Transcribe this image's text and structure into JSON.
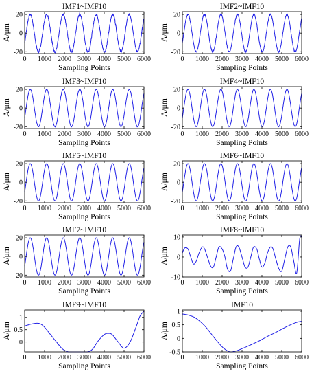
{
  "figure": {
    "line_color": "#1f1fe6",
    "axis_color": "#000000"
  },
  "chart_data": [
    {
      "type": "line",
      "title": "IMF1~IMF10",
      "xlabel": "Sampling Points",
      "ylabel": "A/μm",
      "xlim": [
        0,
        6000
      ],
      "ylim": [
        -22,
        23
      ],
      "xticks": [
        "0",
        "1000",
        "2000",
        "3000",
        "4000",
        "5000",
        "6000"
      ],
      "yticks": [
        -20,
        0,
        20
      ],
      "series": [
        {
          "shape": "sine",
          "period": 830,
          "amplitude": 20,
          "phase_max": 280,
          "noise": 2.2
        }
      ]
    },
    {
      "type": "line",
      "title": "IMF2~IMF10",
      "xlabel": "Sampling Points",
      "ylabel": "A/μm",
      "xlim": [
        0,
        6000
      ],
      "ylim": [
        -22,
        23
      ],
      "xticks": [
        "0",
        "1000",
        "2000",
        "3000",
        "4000",
        "5000",
        "6000"
      ],
      "yticks": [
        -20,
        0,
        20
      ],
      "series": [
        {
          "shape": "sine",
          "period": 830,
          "amplitude": 20,
          "phase_max": 280,
          "noise": 1.3
        }
      ]
    },
    {
      "type": "line",
      "title": "IMF3~IMF10",
      "xlabel": "Sampling Points",
      "ylabel": "A/μm",
      "xlim": [
        0,
        6000
      ],
      "ylim": [
        -22,
        23
      ],
      "xticks": [
        "0",
        "1000",
        "2000",
        "3000",
        "4000",
        "5000",
        "6000"
      ],
      "yticks": [
        -20,
        0,
        20
      ],
      "series": [
        {
          "shape": "sine",
          "period": 830,
          "amplitude": 20,
          "phase_max": 280,
          "noise": 0.6
        }
      ]
    },
    {
      "type": "line",
      "title": "IMF4~IMF10",
      "xlabel": "Sampling Points",
      "ylabel": "A/μm",
      "xlim": [
        0,
        6000
      ],
      "ylim": [
        -22,
        23
      ],
      "xticks": [
        "0",
        "1000",
        "2000",
        "3000",
        "4000",
        "5000",
        "6000"
      ],
      "yticks": [
        -20,
        0,
        20
      ],
      "series": [
        {
          "shape": "sine",
          "period": 830,
          "amplitude": 20,
          "phase_max": 280,
          "noise": 0.4
        }
      ]
    },
    {
      "type": "line",
      "title": "IMF5~IMF10",
      "xlabel": "Sampling Points",
      "ylabel": "A/μm",
      "xlim": [
        0,
        6000
      ],
      "ylim": [
        -22,
        23
      ],
      "xticks": [
        "0",
        "1000",
        "2000",
        "3000",
        "4000",
        "5000",
        "6000"
      ],
      "yticks": [
        -20,
        0,
        20
      ],
      "series": [
        {
          "shape": "sine",
          "period": 830,
          "amplitude": 20,
          "phase_max": 280,
          "noise": 0
        }
      ]
    },
    {
      "type": "line",
      "title": "IMF6~IMF10",
      "xlabel": "Sampling Points",
      "ylabel": "A/μm",
      "xlim": [
        0,
        6000
      ],
      "ylim": [
        -22,
        23
      ],
      "xticks": [
        "0",
        "1000",
        "2000",
        "3000",
        "4000",
        "5000",
        "6000"
      ],
      "yticks": [
        -20,
        0,
        20
      ],
      "series": [
        {
          "shape": "sine",
          "period": 830,
          "amplitude": 20,
          "phase_max": 280,
          "noise": 0
        }
      ]
    },
    {
      "type": "line",
      "title": "IMF7~IMF10",
      "xlabel": "Sampling Points",
      "ylabel": "A/μm",
      "xlim": [
        0,
        6000
      ],
      "ylim": [
        -22,
        23
      ],
      "xticks": [
        "0",
        "1000",
        "2000",
        "3000",
        "4000",
        "5000",
        "6000"
      ],
      "yticks": [
        -20,
        0,
        20
      ],
      "series": [
        {
          "shape": "sine",
          "period": 830,
          "amplitude": 20,
          "phase_max": 280,
          "noise": 0
        }
      ]
    },
    {
      "type": "line",
      "title": "IMF8~IMF10",
      "xlabel": "Sampling Points",
      "ylabel": "A/μm",
      "xlim": [
        0,
        6000
      ],
      "ylim": [
        -10,
        11
      ],
      "xticks": [
        "0",
        "1000",
        "2000",
        "3000",
        "4000",
        "5000",
        "6000"
      ],
      "yticks": [
        -10,
        0,
        10
      ],
      "series": [
        {
          "shape": "points",
          "x": [
            0,
            120,
            280,
            420,
            560,
            700,
            840,
            1000,
            1120,
            1260,
            1420,
            1560,
            1700,
            1840,
            2000,
            2140,
            2270,
            2420,
            2560,
            2700,
            2840,
            3000,
            3150,
            3300,
            3440,
            3580,
            3740,
            3870,
            4000,
            4150,
            4280,
            4430,
            4560,
            4700,
            4860,
            5000,
            5150,
            5300,
            5450,
            5600,
            5750,
            5900,
            6000
          ],
          "y": [
            2,
            4.5,
            4,
            0,
            -3.5,
            -2,
            2,
            5,
            4,
            0,
            -4.5,
            -5,
            0,
            5,
            4,
            0,
            -6,
            -7,
            -1,
            5,
            5,
            0,
            -5,
            -5,
            0,
            5,
            4,
            -1,
            -5,
            -3,
            2,
            5,
            4,
            -1,
            -6,
            -7,
            -1,
            5,
            5,
            -2,
            -8,
            9,
            10
          ]
        }
      ]
    },
    {
      "type": "line",
      "title": "IMF9~IMF10",
      "xlabel": "Sampling Points",
      "ylabel": "A/μm",
      "xlim": [
        0,
        6000
      ],
      "ylim": [
        -0.4,
        1.3
      ],
      "xticks": [
        "0",
        "1000",
        "2000",
        "3000",
        "4000",
        "5000",
        "6000"
      ],
      "yticks": [
        0,
        0.5,
        1
      ],
      "series": [
        {
          "shape": "points",
          "x": [
            0,
            300,
            600,
            800,
            1000,
            1300,
            1600,
            1900,
            2200,
            2500,
            2800,
            3100,
            3400,
            3700,
            4000,
            4200,
            4400,
            4700,
            5000,
            5300,
            5600,
            5800,
            6000
          ],
          "y": [
            0.65,
            0.72,
            0.76,
            0.73,
            0.6,
            0.3,
            0.0,
            -0.28,
            -0.4,
            -0.42,
            -0.42,
            -0.41,
            -0.3,
            0.05,
            0.3,
            0.35,
            0.3,
            0.0,
            -0.25,
            0.0,
            0.6,
            1.05,
            1.25
          ]
        }
      ]
    },
    {
      "type": "line",
      "title": "IMF10",
      "xlabel": "Sampling Points",
      "ylabel": "A/μm",
      "xlim": [
        0,
        6000
      ],
      "ylim": [
        -0.5,
        1.05
      ],
      "xticks": [
        "0",
        "1000",
        "2000",
        "3000",
        "4000",
        "5000",
        "6000"
      ],
      "yticks": [
        -0.5,
        0,
        0.5,
        1
      ],
      "yticklabels": [
        "-0.5",
        "0",
        "0.5",
        "1"
      ],
      "series": [
        {
          "shape": "points",
          "x": [
            0,
            300,
            600,
            900,
            1200,
            1500,
            1800,
            2100,
            2400,
            2600,
            2800,
            3100,
            3500,
            3900,
            4300,
            4700,
            5100,
            5500,
            5800,
            6000
          ],
          "y": [
            0.9,
            0.86,
            0.78,
            0.62,
            0.4,
            0.12,
            -0.15,
            -0.38,
            -0.5,
            -0.48,
            -0.44,
            -0.35,
            -0.22,
            -0.08,
            0.08,
            0.22,
            0.38,
            0.52,
            0.6,
            0.63
          ]
        }
      ]
    }
  ]
}
